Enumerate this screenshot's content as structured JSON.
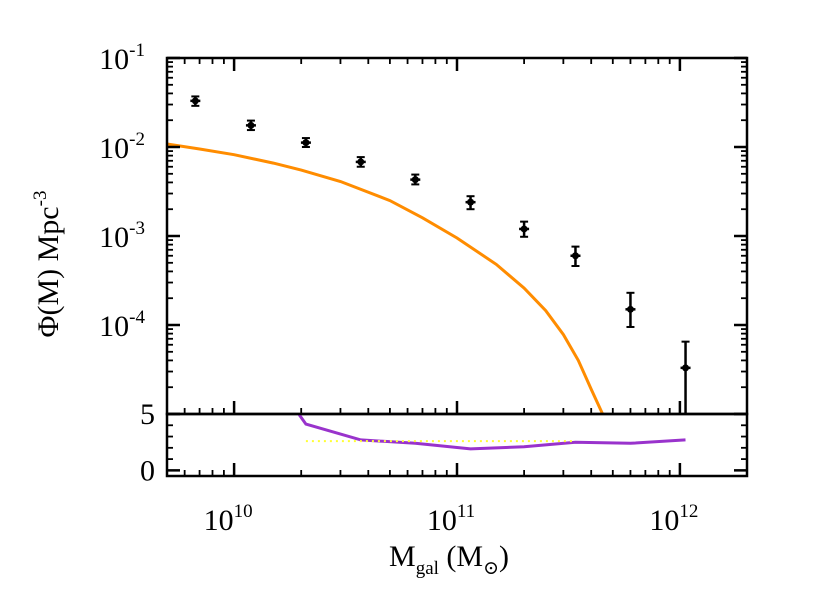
{
  "chart_data": [
    {
      "type": "scatter",
      "title": "",
      "xscale": "log",
      "yscale": "log",
      "xlim": [
        5000000000,
        2000000000000
      ],
      "ylim": [
        1e-05,
        0.1
      ],
      "grid": false,
      "ylabel": {
        "main": "Φ(M) Mpc",
        "superscript": "-3"
      },
      "y_tick_labels": [
        {
          "value": 0.1,
          "base": "10",
          "exp": "-1"
        },
        {
          "value": 0.01,
          "base": "10",
          "exp": "-2"
        },
        {
          "value": 0.001,
          "base": "10",
          "exp": "-3"
        },
        {
          "value": 0.0001,
          "base": "10",
          "exp": "-4"
        }
      ],
      "series": [
        {
          "kind": "points-with-errorbars",
          "color": "#000000",
          "points": [
            {
              "x": 6700000000,
              "y": 0.033,
              "yerr_low": 0.029,
              "yerr_high": 0.037
            },
            {
              "x": 11900000000,
              "y": 0.0175,
              "yerr_low": 0.0155,
              "yerr_high": 0.0198
            },
            {
              "x": 21000000000,
              "y": 0.0112,
              "yerr_low": 0.01,
              "yerr_high": 0.0126
            },
            {
              "x": 37000000000,
              "y": 0.0068,
              "yerr_low": 0.006,
              "yerr_high": 0.0077
            },
            {
              "x": 65000000000,
              "y": 0.0043,
              "yerr_low": 0.0038,
              "yerr_high": 0.0049
            },
            {
              "x": 115000000000,
              "y": 0.0024,
              "yerr_low": 0.002,
              "yerr_high": 0.0028
            },
            {
              "x": 200000000000,
              "y": 0.0012,
              "yerr_low": 0.00098,
              "yerr_high": 0.00145
            },
            {
              "x": 340000000000,
              "y": 0.0006,
              "yerr_low": 0.00046,
              "yerr_high": 0.00076
            },
            {
              "x": 600000000000,
              "y": 0.00015,
              "yerr_low": 9.5e-05,
              "yerr_high": 0.00023
            },
            {
              "x": 1060000000000,
              "y": 3.3e-05,
              "yerr_low": 1e-05,
              "yerr_high": 6.5e-05
            }
          ]
        },
        {
          "kind": "line",
          "color": "#ff8c00",
          "points": [
            {
              "x": 5000000000,
              "y": 0.0108
            },
            {
              "x": 7000000000,
              "y": 0.0095
            },
            {
              "x": 10000000000,
              "y": 0.0082
            },
            {
              "x": 15000000000,
              "y": 0.0066
            },
            {
              "x": 20000000000,
              "y": 0.0055
            },
            {
              "x": 30000000000,
              "y": 0.0041
            },
            {
              "x": 50000000000,
              "y": 0.0025
            },
            {
              "x": 70000000000,
              "y": 0.0016
            },
            {
              "x": 100000000000,
              "y": 0.00095
            },
            {
              "x": 150000000000,
              "y": 0.00048
            },
            {
              "x": 200000000000,
              "y": 0.00026
            },
            {
              "x": 250000000000,
              "y": 0.000145
            },
            {
              "x": 300000000000,
              "y": 7.8e-05
            },
            {
              "x": 350000000000,
              "y": 4e-05
            },
            {
              "x": 400000000000,
              "y": 1.9e-05
            },
            {
              "x": 450000000000,
              "y": 1e-05
            }
          ]
        }
      ]
    },
    {
      "type": "line",
      "title": "",
      "xscale": "log",
      "xlim": [
        5000000000,
        2000000000000
      ],
      "ylim": [
        -0.5,
        5
      ],
      "grid": false,
      "xlabel": {
        "main": "M",
        "subscript": "gal",
        "unit_open": " (M",
        "unit_symbol": "⊙",
        "unit_close": ")"
      },
      "x_tick_labels": [
        {
          "value": 10000000000,
          "base": "10",
          "exp": "10"
        },
        {
          "value": 100000000000,
          "base": "10",
          "exp": "11"
        },
        {
          "value": 1000000000000,
          "base": "10",
          "exp": "12"
        }
      ],
      "y_tick_labels": [
        {
          "value": 5,
          "text": "5"
        },
        {
          "value": 0,
          "text": "0"
        }
      ],
      "series": [
        {
          "kind": "line",
          "color": "#9933cc",
          "style": "solid",
          "points": [
            {
              "x": 19500000000,
              "y": 5
            },
            {
              "x": 21000000000,
              "y": 4.1
            },
            {
              "x": 37000000000,
              "y": 2.7
            },
            {
              "x": 65000000000,
              "y": 2.4
            },
            {
              "x": 115000000000,
              "y": 1.9
            },
            {
              "x": 200000000000,
              "y": 2.1
            },
            {
              "x": 340000000000,
              "y": 2.5
            },
            {
              "x": 600000000000,
              "y": 2.4
            },
            {
              "x": 1060000000000,
              "y": 2.7
            }
          ]
        },
        {
          "kind": "line",
          "color": "#ffff33",
          "style": "dotted",
          "points": [
            {
              "x": 21000000000,
              "y": 2.6
            },
            {
              "x": 340000000000,
              "y": 2.6
            }
          ]
        }
      ]
    }
  ]
}
